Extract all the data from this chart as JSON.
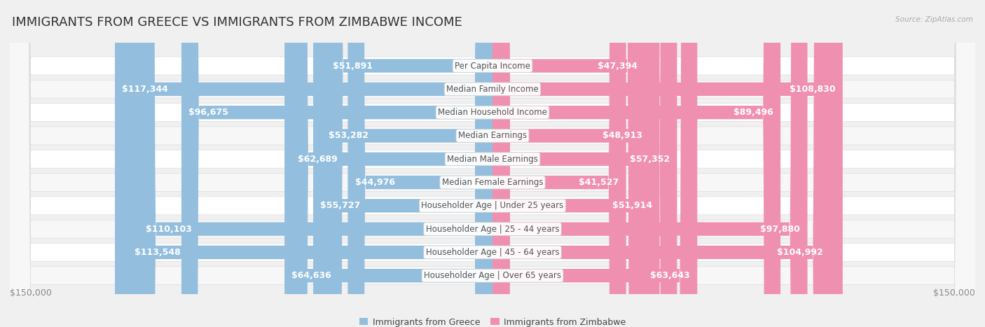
{
  "title": "IMMIGRANTS FROM GREECE VS IMMIGRANTS FROM ZIMBABWE INCOME",
  "source": "Source: ZipAtlas.com",
  "categories": [
    "Per Capita Income",
    "Median Family Income",
    "Median Household Income",
    "Median Earnings",
    "Median Male Earnings",
    "Median Female Earnings",
    "Householder Age | Under 25 years",
    "Householder Age | 25 - 44 years",
    "Householder Age | 45 - 64 years",
    "Householder Age | Over 65 years"
  ],
  "greece_values": [
    51891,
    117344,
    96675,
    53282,
    62689,
    44976,
    55727,
    110103,
    113548,
    64636
  ],
  "zimbabwe_values": [
    47394,
    108830,
    89496,
    48913,
    57352,
    41527,
    51914,
    97880,
    104992,
    63643
  ],
  "greece_labels": [
    "$51,891",
    "$117,344",
    "$96,675",
    "$53,282",
    "$62,689",
    "$44,976",
    "$55,727",
    "$110,103",
    "$113,548",
    "$64,636"
  ],
  "zimbabwe_labels": [
    "$47,394",
    "$108,830",
    "$89,496",
    "$48,913",
    "$57,352",
    "$41,527",
    "$51,914",
    "$97,880",
    "$104,992",
    "$63,643"
  ],
  "max_value": 150000,
  "greece_color_light": "#b8d4ea",
  "greece_color_dark": "#5a9fd4",
  "zimbabwe_color_light": "#f8b8cc",
  "zimbabwe_color_dark": "#e8608c",
  "greece_color": "#93bedd",
  "zimbabwe_color": "#f090b0",
  "background_color": "#f0f0f0",
  "row_bg_even": "#ffffff",
  "row_bg_odd": "#f7f7f7",
  "row_border_color": "#dddddd",
  "axis_label_color": "#888888",
  "title_color": "#333333",
  "outer_label_color": "#555555",
  "inner_label_color": "#ffffff",
  "category_text_color": "#555555",
  "legend_greece_color": "#93bedd",
  "legend_zimbabwe_color": "#f090b0",
  "inner_threshold": 30000,
  "title_fontsize": 13,
  "label_fontsize": 9,
  "cat_fontsize": 8.5,
  "axis_fontsize": 9
}
